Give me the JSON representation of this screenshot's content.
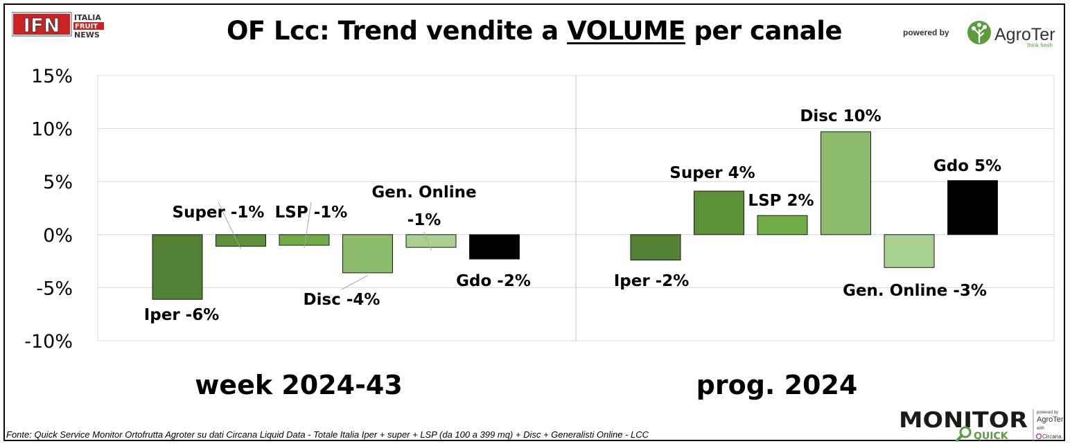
{
  "header": {
    "title_prefix": "OF Lcc: Trend vendite a ",
    "title_emphasis": "VOLUME",
    "title_suffix": " per canale",
    "ifn_logo": {
      "mark": "IFN",
      "line1": "ITALIA",
      "line2": "FRUIT",
      "line3": "NEWS"
    },
    "powered_by": "powered by",
    "agroter_logo": {
      "name": "AgroTer",
      "tagline": "think fresh",
      "icon": "tree-icon"
    }
  },
  "footer": {
    "source": "Fonte: Quick Service Monitor Ortofrutta Agroter su dati Circana Liquid Data - Totale Italia Iper + super + LSP (da 100 a 399 mq) + Disc + Generalisti Online - LCC",
    "monitor_logo": {
      "word": "MONITOR",
      "sub": "QUICK",
      "powered": "powered by",
      "brand": "AgroTer",
      "with": "with",
      "partner": "Circana.",
      "icon": "magnifier-icon"
    }
  },
  "chart_data": {
    "type": "bar",
    "title": "OF Lcc: Trend vendite a VOLUME per canale",
    "ylim": [
      -10,
      15
    ],
    "yticks": [
      15,
      10,
      5,
      0,
      -5,
      -10
    ],
    "ytick_labels": [
      "15%",
      "10%",
      "5%",
      "0%",
      "-5%",
      "-10%"
    ],
    "grid": true,
    "legend": "none",
    "groups": [
      {
        "label": "week 2024-43",
        "bars": [
          {
            "category": "Iper",
            "value": -6.1,
            "label": "Iper -6%",
            "color": "#538135"
          },
          {
            "category": "Super",
            "value": -1.1,
            "label": "Super -1%",
            "color": "#5b8f39"
          },
          {
            "category": "LSP",
            "value": -1.0,
            "label": "LSP -1%",
            "color": "#70ad47"
          },
          {
            "category": "Disc",
            "value": -3.6,
            "label": "Disc -4%",
            "color": "#8cbb6b"
          },
          {
            "category": "Gen. Online",
            "value": -1.2,
            "label_lines": [
              "Gen. Online",
              "-1%"
            ],
            "color": "#a9d08e"
          },
          {
            "category": "Gdo",
            "value": -2.3,
            "label": "Gdo -2%",
            "color": "#000000"
          }
        ]
      },
      {
        "label": "prog. 2024",
        "bars": [
          {
            "category": "Iper",
            "value": -2.4,
            "label": "Iper -2%",
            "color": "#538135"
          },
          {
            "category": "Super",
            "value": 4.1,
            "label": "Super 4%",
            "color": "#5b8f39"
          },
          {
            "category": "LSP",
            "value": 1.8,
            "label": "LSP 2%",
            "color": "#70ad47"
          },
          {
            "category": "Disc",
            "value": 9.7,
            "label": "Disc 10%",
            "color": "#8cbb6b"
          },
          {
            "category": "Gen. Online",
            "value": -3.1,
            "label": "Gen. Online -3%",
            "color": "#a9d08e"
          },
          {
            "category": "Gdo",
            "value": 5.1,
            "label": "Gdo 5%",
            "color": "#000000"
          }
        ]
      }
    ]
  }
}
